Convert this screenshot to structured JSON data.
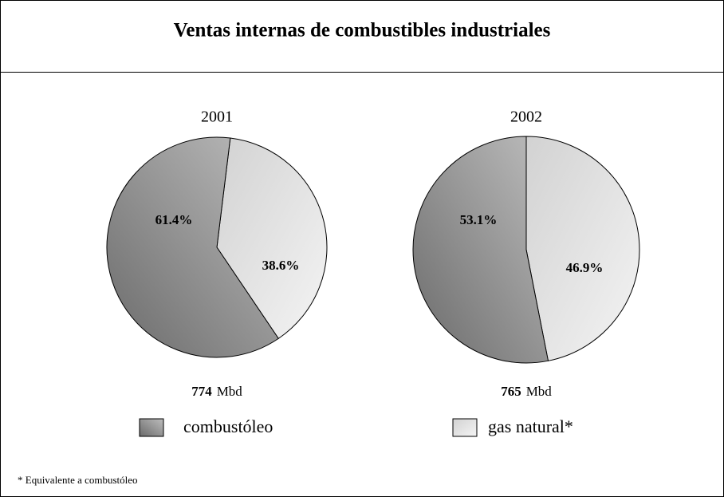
{
  "title": "Ventas internas de combustibles industriales",
  "footnote": "* Equivalente a combustóleo",
  "chart_data": [
    {
      "type": "pie",
      "title": "2001",
      "categories": [
        "combustóleo",
        "gas natural*"
      ],
      "values": [
        61.4,
        38.6
      ],
      "value_labels": [
        "61.4%",
        "38.6%"
      ],
      "colors": [
        "#6a6a6a",
        "#d2d2d2"
      ],
      "total": 774,
      "total_unit": "Mbd"
    },
    {
      "type": "pie",
      "title": "2002",
      "categories": [
        "combustóleo",
        "gas natural*"
      ],
      "values": [
        53.1,
        46.9
      ],
      "value_labels": [
        "53.1%",
        "46.9%"
      ],
      "colors": [
        "#6a6a6a",
        "#d2d2d2"
      ],
      "total": 765,
      "total_unit": "Mbd"
    }
  ]
}
